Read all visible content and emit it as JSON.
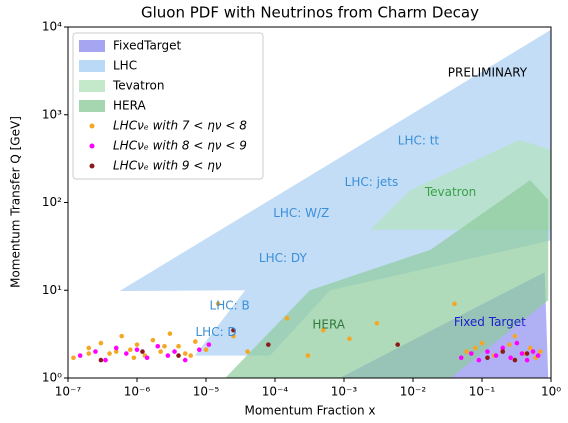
{
  "chart_data": {
    "type": "scatter",
    "title": "Gluon PDF with Neutrinos from Charm Decay",
    "x_label": "Momentum Fraction x",
    "y_label": "Momentum Transfer Q [GeV]",
    "log_x": true,
    "log_y": true,
    "xlim": [
      1e-07,
      1
    ],
    "ylim": [
      1,
      10000
    ],
    "xticks": [
      {
        "value": 1e-07,
        "label": "10⁻⁷"
      },
      {
        "value": 1e-06,
        "label": "10⁻⁶"
      },
      {
        "value": 1e-05,
        "label": "10⁻⁵"
      },
      {
        "value": 0.0001,
        "label": "10⁻⁴"
      },
      {
        "value": 0.001,
        "label": "10⁻³"
      },
      {
        "value": 0.01,
        "label": "10⁻²"
      },
      {
        "value": 0.1,
        "label": "10⁻¹"
      },
      {
        "value": 1,
        "label": "10⁰"
      }
    ],
    "yticks": [
      {
        "value": 1,
        "label": "10⁰"
      },
      {
        "value": 10,
        "label": "10¹"
      },
      {
        "value": 100,
        "label": "10²"
      },
      {
        "value": 1000,
        "label": "10³"
      },
      {
        "value": 10000,
        "label": "10⁴"
      }
    ],
    "legend_position": "upper left",
    "regions": [
      {
        "name": "FixedTarget",
        "color": "#8f8fef",
        "x": [
          0.00087,
          0.13,
          0.81,
          0.91
        ],
        "y": [
          1,
          7.7,
          16,
          1
        ]
      },
      {
        "name": "LHC",
        "color": "#a9cff4",
        "x": [
          5.6e-07,
          1,
          1,
          0.00063,
          8.5e-05,
          6.9e-06,
          3.7e-05
        ],
        "y": [
          9.8,
          9300,
          37,
          10,
          1.8,
          1.8,
          10
        ]
      },
      {
        "name": "Tevatron",
        "color": "#b5e3bd",
        "x": [
          0.0024,
          0.0091,
          0.35,
          1,
          1
        ],
        "y": [
          49,
          138,
          515,
          400,
          49
        ]
      },
      {
        "name": "HERA",
        "color": "#8fcc9c",
        "x": [
          1.9e-05,
          0.00032,
          0.018,
          0.5,
          0.91,
          0.91,
          0.035
        ],
        "y": [
          1,
          10,
          29,
          180,
          107,
          7.7,
          1
        ]
      }
    ],
    "series": [
      {
        "name": "LHCνₑ with 7 < ην < 8",
        "color": "#f5a623",
        "x": [
          1.2e-07,
          2e-07,
          3e-07,
          4e-07,
          6e-07,
          8e-07,
          1e-06,
          1.3e-06,
          1.7e-06,
          2.2e-06,
          3e-06,
          4e-06,
          5e-06,
          7e-06,
          1e-05,
          1.5e-05,
          2.5e-05,
          4e-05,
          0.00015,
          0.0003,
          0.0005,
          0.0012,
          0.003,
          0.04,
          0.06,
          0.08,
          0.1,
          0.15,
          0.2,
          0.25,
          0.3,
          0.4,
          0.5,
          0.6,
          0.7,
          2e-07,
          5e-07,
          9e-07,
          2.5e-06,
          6e-06
        ],
        "values": [
          1.7,
          2.2,
          2.5,
          1.9,
          3.0,
          2.1,
          2.4,
          1.8,
          2.7,
          2.0,
          3.2,
          2.3,
          1.9,
          2.6,
          2.1,
          7.0,
          3.0,
          2.0,
          4.8,
          1.8,
          3.5,
          2.8,
          4.2,
          7.0,
          2.0,
          2.2,
          2.5,
          1.8,
          2.1,
          2.4,
          3.0,
          1.9,
          2.2,
          1.7,
          2.0,
          1.9,
          2.0,
          1.7,
          2.3,
          1.8
        ]
      },
      {
        "name": "LHCνₑ with 8 < ην < 9",
        "color": "#ff00ff",
        "x": [
          1.5e-07,
          2.5e-07,
          3.5e-07,
          5e-07,
          7e-07,
          1e-06,
          1.4e-06,
          2e-06,
          2.8e-06,
          3.5e-06,
          5e-06,
          8e-06,
          0.05,
          0.07,
          0.09,
          0.12,
          0.16,
          0.2,
          0.26,
          0.32,
          0.38,
          0.45,
          0.55,
          0.65,
          1.1e-05
        ],
        "values": [
          1.8,
          2.0,
          1.6,
          2.2,
          1.9,
          2.1,
          1.7,
          2.3,
          1.8,
          2.0,
          1.6,
          2.1,
          1.7,
          1.9,
          1.6,
          2.0,
          1.8,
          2.2,
          1.7,
          2.5,
          1.9,
          1.6,
          2.0,
          1.8,
          2.4
        ]
      },
      {
        "name": "LHCνₑ with 9 < ην",
        "color": "#8b1a1a",
        "x": [
          3e-07,
          1.2e-06,
          4e-06,
          8e-05,
          0.006,
          0.12,
          0.2,
          0.3,
          0.45,
          2.5e-05
        ],
        "values": [
          1.6,
          2.0,
          1.8,
          2.4,
          2.4,
          1.7,
          2.0,
          1.6,
          1.9,
          3.5
        ]
      }
    ],
    "annotations": [
      "PRELIMINARY",
      "LHC: tt",
      "LHC: jets",
      "LHC: W/Z",
      "LHC: DY",
      "LHC: B",
      "LHC: D",
      "Tevatron",
      "HERA",
      "Fixed Target"
    ]
  }
}
